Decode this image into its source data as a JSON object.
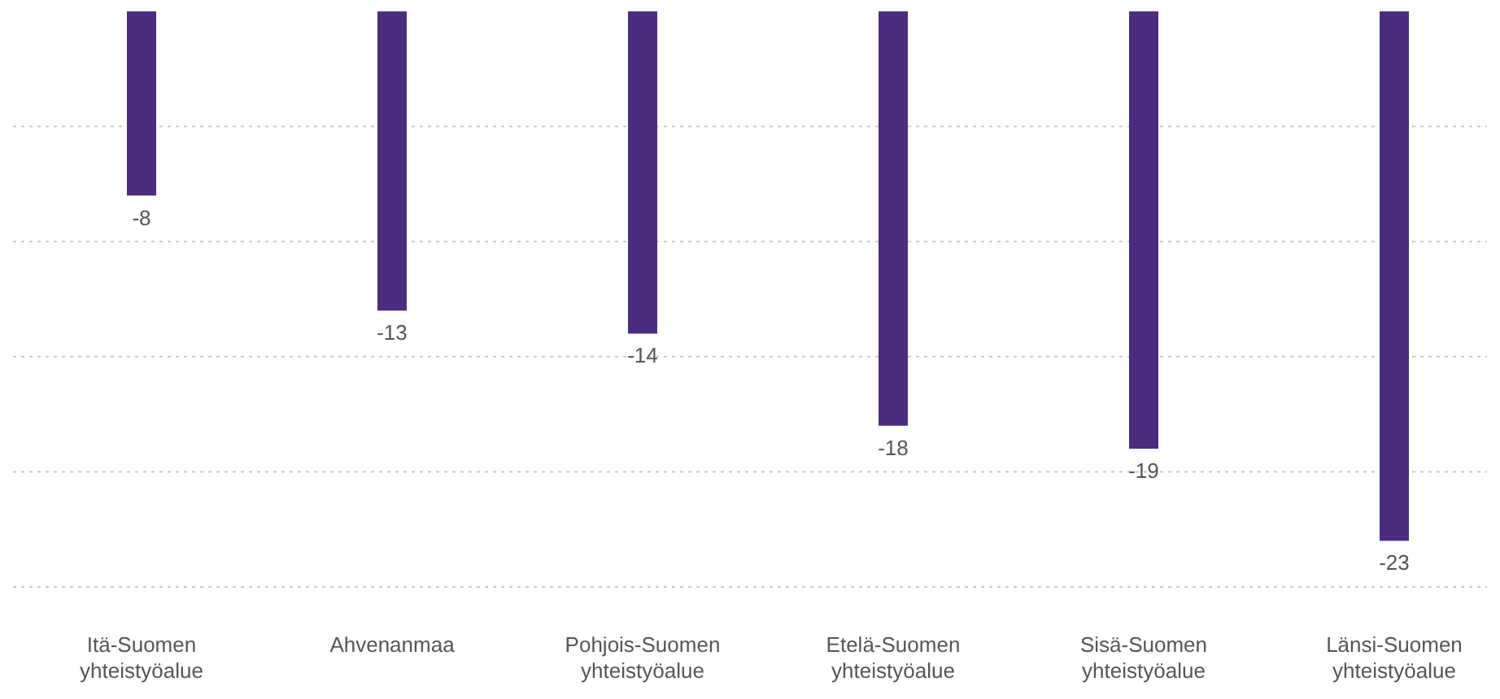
{
  "chart_data": {
    "type": "bar",
    "categories": [
      "Itä-Suomen yhteistyöalue",
      "Ahvenanmaa",
      "Pohjois-Suomen yhteistyöalue",
      "Etelä-Suomen yhteistyöalue",
      "Sisä-Suomen yhteistyöalue",
      "Länsi-Suomen yhteistyöalue"
    ],
    "values": [
      -8,
      -13,
      -14,
      -18,
      -19,
      -23
    ],
    "color": "#4b2c7e",
    "ylim": [
      -25,
      0
    ],
    "yticks": [
      {
        "value": -5,
        "label": null
      },
      {
        "value": -10,
        "label": null
      },
      {
        "value": -15,
        "label": null
      },
      {
        "value": -20,
        "label": null
      },
      {
        "value": -25,
        "label": null
      }
    ],
    "tick_labels": "x",
    "grid": "y",
    "data_labels": true
  }
}
